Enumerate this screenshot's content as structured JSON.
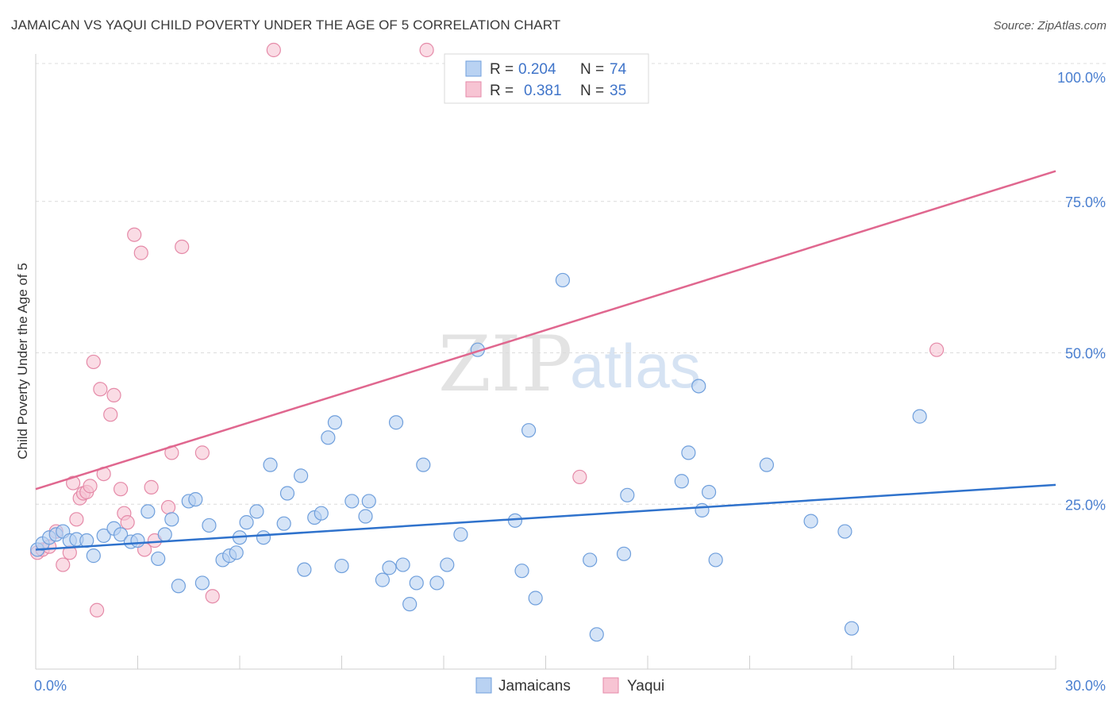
{
  "title": "JAMAICAN VS YAQUI CHILD POVERTY UNDER THE AGE OF 5 CORRELATION CHART",
  "source": "Source: ZipAtlas.com",
  "watermark": {
    "zip": "ZIP",
    "atlas": "atlas"
  },
  "colors": {
    "jamaicans_fill": "#b9d2f2",
    "jamaicans_stroke": "#6f9fdc",
    "jamaicans_line": "#2f72cc",
    "yaqui_fill": "#f7c4d3",
    "yaqui_stroke": "#e58aa8",
    "yaqui_line": "#e0678f",
    "tick_label": "#4a7fd0"
  },
  "legend": {
    "rows": [
      {
        "r_label": "R =",
        "r_value": "0.204",
        "n_label": "N =",
        "n_value": "74"
      },
      {
        "r_label": "R =",
        "r_value": "0.381",
        "n_label": "N =",
        "n_value": "35"
      }
    ]
  },
  "chart_data": {
    "type": "scatter",
    "title": "JAMAICAN VS YAQUI CHILD POVERTY UNDER THE AGE OF 5 CORRELATION CHART",
    "xlabel": "",
    "ylabel": "Child Poverty Under the Age of 5",
    "xlim": [
      0,
      30
    ],
    "ylim": [
      0,
      100
    ],
    "x_tick_labels": [
      "0.0%",
      "30.0%"
    ],
    "y_ticks": [
      25,
      50,
      75,
      100
    ],
    "y_tick_labels": [
      "25.0%",
      "50.0%",
      "75.0%",
      "100.0%"
    ],
    "grid": true,
    "legend_position": "top-center",
    "series": [
      {
        "name": "Jamaicans",
        "r": 0.204,
        "n": 74,
        "trend": {
          "x": [
            0,
            30
          ],
          "y": [
            17.5,
            28.2
          ]
        },
        "points": [
          [
            0.05,
            17.5
          ],
          [
            0.2,
            18.5
          ],
          [
            0.4,
            19.5
          ],
          [
            0.6,
            20
          ],
          [
            0.8,
            20.5
          ],
          [
            1.0,
            19
          ],
          [
            1.2,
            19.2
          ],
          [
            1.5,
            19
          ],
          [
            1.7,
            16.5
          ],
          [
            2.0,
            19.8
          ],
          [
            2.3,
            21
          ],
          [
            2.5,
            20
          ],
          [
            2.8,
            18.8
          ],
          [
            3.0,
            19
          ],
          [
            3.3,
            23.8
          ],
          [
            3.6,
            16
          ],
          [
            3.8,
            20
          ],
          [
            4.0,
            22.5
          ],
          [
            4.2,
            11.5
          ],
          [
            4.5,
            25.5
          ],
          [
            4.7,
            25.8
          ],
          [
            4.9,
            12
          ],
          [
            5.1,
            21.5
          ],
          [
            5.5,
            15.8
          ],
          [
            5.7,
            16.5
          ],
          [
            5.9,
            17
          ],
          [
            6.0,
            19.5
          ],
          [
            6.2,
            22
          ],
          [
            6.5,
            23.8
          ],
          [
            6.7,
            19.5
          ],
          [
            6.9,
            31.5
          ],
          [
            7.3,
            21.8
          ],
          [
            7.4,
            26.8
          ],
          [
            7.8,
            29.7
          ],
          [
            7.9,
            14.2
          ],
          [
            8.2,
            22.8
          ],
          [
            8.4,
            23.5
          ],
          [
            8.6,
            36
          ],
          [
            8.8,
            38.5
          ],
          [
            9.0,
            14.8
          ],
          [
            9.3,
            25.5
          ],
          [
            9.7,
            23
          ],
          [
            9.8,
            25.5
          ],
          [
            10.2,
            12.5
          ],
          [
            10.4,
            14.5
          ],
          [
            10.6,
            38.5
          ],
          [
            10.8,
            15
          ],
          [
            11.0,
            8.5
          ],
          [
            11.2,
            12
          ],
          [
            11.4,
            31.5
          ],
          [
            11.8,
            12
          ],
          [
            12.1,
            15
          ],
          [
            12.5,
            20
          ],
          [
            13.0,
            50.5
          ],
          [
            14.1,
            22.3
          ],
          [
            14.3,
            14
          ],
          [
            14.5,
            37.2
          ],
          [
            14.7,
            9.5
          ],
          [
            15.5,
            62
          ],
          [
            16.3,
            15.8
          ],
          [
            16.5,
            3.5
          ],
          [
            17.3,
            16.8
          ],
          [
            17.4,
            26.5
          ],
          [
            19.0,
            28.8
          ],
          [
            19.2,
            33.5
          ],
          [
            19.5,
            44.5
          ],
          [
            19.6,
            24
          ],
          [
            19.8,
            27
          ],
          [
            20.0,
            15.8
          ],
          [
            21.5,
            31.5
          ],
          [
            22.8,
            22.2
          ],
          [
            23.8,
            20.5
          ],
          [
            24.0,
            4.5
          ],
          [
            26.0,
            39.5
          ]
        ]
      },
      {
        "name": "Yaqui",
        "r": 0.381,
        "n": 35,
        "trend": {
          "x": [
            0,
            30
          ],
          "y": [
            27.5,
            80
          ]
        },
        "points": [
          [
            0.05,
            17
          ],
          [
            0.2,
            17.5
          ],
          [
            0.4,
            18
          ],
          [
            0.6,
            20.5
          ],
          [
            0.8,
            15
          ],
          [
            1.0,
            17
          ],
          [
            1.1,
            28.5
          ],
          [
            1.2,
            22.5
          ],
          [
            1.3,
            26
          ],
          [
            1.4,
            26.8
          ],
          [
            1.5,
            27
          ],
          [
            1.6,
            28
          ],
          [
            1.7,
            48.5
          ],
          [
            1.8,
            7.5
          ],
          [
            1.9,
            44
          ],
          [
            2.0,
            30
          ],
          [
            2.2,
            39.8
          ],
          [
            2.3,
            43
          ],
          [
            2.5,
            27.5
          ],
          [
            2.6,
            23.5
          ],
          [
            2.7,
            22
          ],
          [
            2.9,
            69.5
          ],
          [
            3.1,
            66.5
          ],
          [
            3.2,
            17.5
          ],
          [
            3.4,
            27.8
          ],
          [
            3.5,
            19
          ],
          [
            3.9,
            24.5
          ],
          [
            4.0,
            33.5
          ],
          [
            4.3,
            67.5
          ],
          [
            4.9,
            33.5
          ],
          [
            5.2,
            9.8
          ],
          [
            7.0,
            100
          ],
          [
            11.5,
            100
          ],
          [
            16.0,
            29.5
          ],
          [
            26.5,
            50.5
          ]
        ]
      }
    ]
  }
}
